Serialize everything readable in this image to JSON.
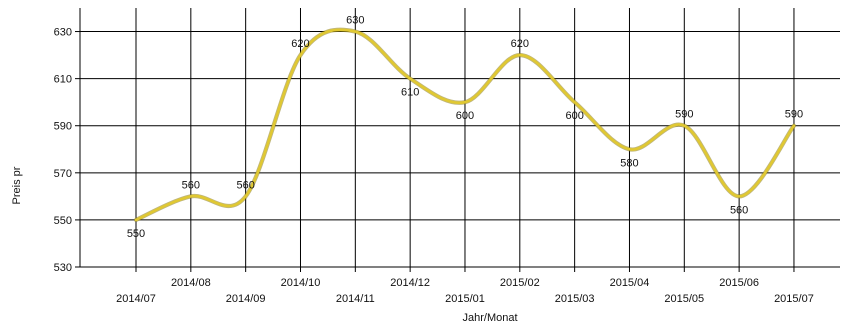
{
  "chart_data": {
    "type": "line",
    "title": "",
    "xlabel": "Jahr/Monat",
    "ylabel": "Preis pr",
    "x": [
      "2014/07",
      "2014/08",
      "2014/09",
      "2014/10",
      "2014/11",
      "2014/12",
      "2015/01",
      "2015/02",
      "2015/03",
      "2015/04",
      "2015/05",
      "2015/06",
      "2015/07"
    ],
    "series": [
      {
        "values": [
          550,
          560,
          560,
          620,
          630,
          610,
          600,
          620,
          600,
          580,
          590,
          560,
          590
        ],
        "color": "#e0c832"
      }
    ],
    "ylim": [
      530,
      640
    ],
    "yticks": [
      530,
      550,
      570,
      590,
      610,
      630
    ],
    "grid": true,
    "smooth": true,
    "legend": "none"
  }
}
